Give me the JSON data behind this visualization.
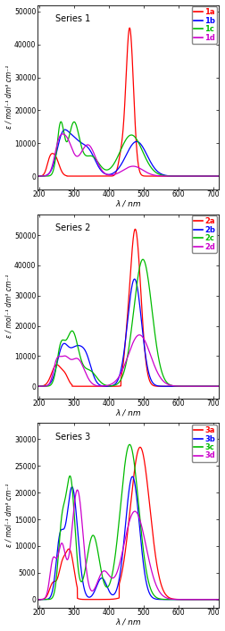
{
  "title1": "Series 1",
  "title2": "Series 2",
  "title3": "Series 3",
  "ylabel": "ε / mol⁻¹ dm³ cm⁻¹",
  "xlabel": "λ / nm",
  "colors": {
    "a": "#ff0000",
    "b": "#0000ff",
    "c": "#00bb00",
    "d": "#cc00cc"
  },
  "s1_ylim": [
    -4000,
    52000
  ],
  "s2_ylim": [
    -4000,
    57000
  ],
  "s3_ylim": [
    -1500,
    33000
  ],
  "xlim": [
    195,
    715
  ],
  "s1_yticks": [
    0,
    10000,
    20000,
    30000,
    40000,
    50000
  ],
  "s2_yticks": [
    0,
    10000,
    20000,
    30000,
    40000,
    50000
  ],
  "s3_yticks": [
    0,
    5000,
    10000,
    15000,
    20000,
    25000,
    30000
  ],
  "xticks": [
    200,
    300,
    400,
    500,
    600,
    700
  ]
}
